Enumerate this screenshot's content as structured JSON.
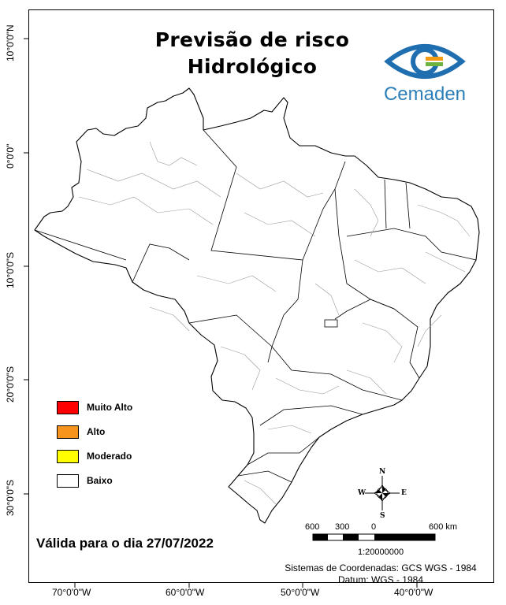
{
  "title": {
    "line1": "Previsão de risco",
    "line2": "Hidrológico"
  },
  "logo": {
    "text": "Cemaden",
    "colors": [
      "#1f6fb0",
      "#f39c12",
      "#6cb33f"
    ]
  },
  "latitude_labels": [
    "10°0'0\"N",
    "0°0'0\"",
    "10°0'0\"S",
    "20°0'0\"S",
    "30°0'0\"S"
  ],
  "longitude_labels": [
    "70°0'0\"W",
    "60°0'0\"W",
    "50°0'0\"W",
    "40°0'0\"W"
  ],
  "legend": {
    "items": [
      {
        "label": "Muito Alto",
        "color": "#ff0000"
      },
      {
        "label": "Alto",
        "color": "#f7941d"
      },
      {
        "label": "Moderado",
        "color": "#ffff00"
      },
      {
        "label": "Baixo",
        "color": "#ffffff"
      }
    ]
  },
  "validity": "Válida para o dia 27/07/2022",
  "scale_bar": {
    "ticks": [
      "600",
      "300",
      "0",
      "600 km"
    ],
    "ratio": "1:20000000"
  },
  "compass": {
    "n": "N",
    "s": "S",
    "e": "E",
    "w": "W"
  },
  "coordinates": {
    "system": "Sistemas de Coordenadas: GCS WGS - 1984",
    "datum": "Datum: WGS - 1984"
  }
}
